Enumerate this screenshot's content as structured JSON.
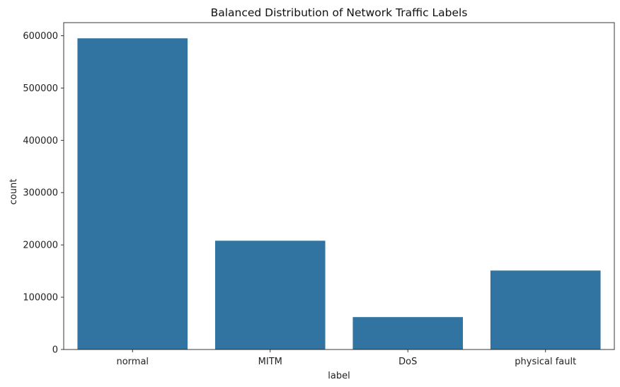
{
  "chart_data": {
    "type": "bar",
    "title": "Balanced Distribution of Network Traffic Labels",
    "xlabel": "label",
    "ylabel": "count",
    "categories": [
      "normal",
      "MITM",
      "DoS",
      "physical fault"
    ],
    "values": [
      595000,
      208000,
      62000,
      151000
    ],
    "ylim": [
      0,
      625000
    ],
    "yticks": [
      0,
      100000,
      200000,
      300000,
      400000,
      500000,
      600000
    ],
    "ytick_labels": [
      "0",
      "100000",
      "200000",
      "300000",
      "400000",
      "500000",
      "600000"
    ],
    "grid": false,
    "legend": "none",
    "bar_color": "#3274a1"
  }
}
